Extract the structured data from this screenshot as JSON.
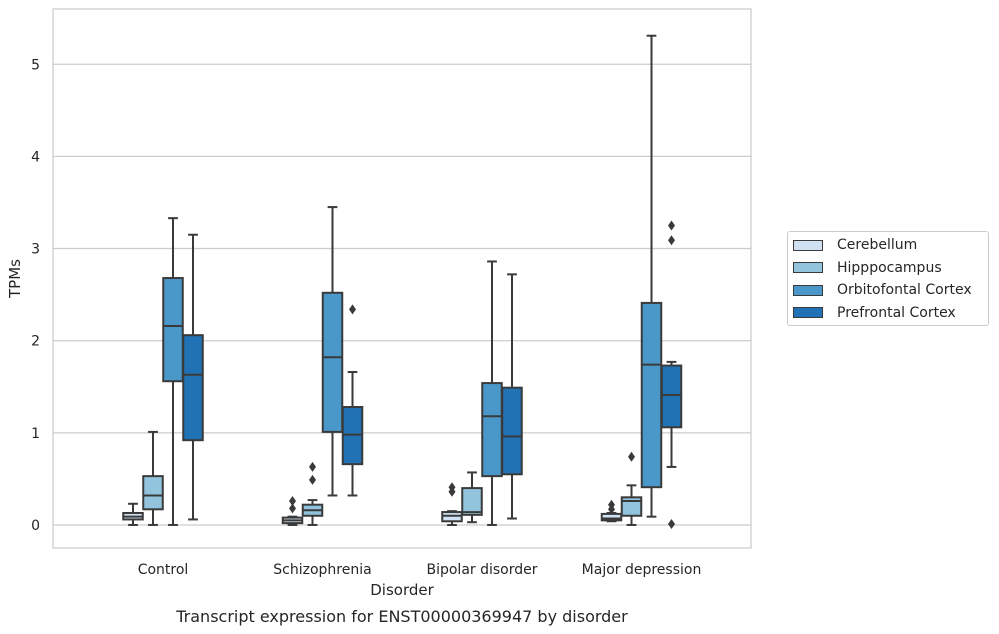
{
  "chart_data": {
    "type": "box",
    "title": "",
    "caption": "Transcript expression for ENST00000369947 by disorder",
    "xlabel": "Disorder",
    "ylabel": "TPMs",
    "ylim": [
      -0.25,
      5.6
    ],
    "yticks": [
      0,
      1,
      2,
      3,
      4,
      5
    ],
    "grid": true,
    "legend_position": "right",
    "categories": [
      "Control",
      "Schizophrenia",
      "Bipolar disorder",
      "Major depression"
    ],
    "series": [
      {
        "name": "Cerebellum",
        "color": "#cfe1f2",
        "boxes": [
          {
            "whisker_low": 0.0,
            "q1": 0.06,
            "median": 0.09,
            "q3": 0.13,
            "whisker_high": 0.23,
            "outliers": []
          },
          {
            "whisker_low": 0.0,
            "q1": 0.02,
            "median": 0.05,
            "q3": 0.08,
            "whisker_high": 0.09,
            "outliers": [
              0.18,
              0.26
            ]
          },
          {
            "whisker_low": 0.0,
            "q1": 0.04,
            "median": 0.1,
            "q3": 0.14,
            "whisker_high": 0.15,
            "outliers": [
              0.36,
              0.41
            ]
          },
          {
            "whisker_low": 0.04,
            "q1": 0.05,
            "median": 0.07,
            "q3": 0.12,
            "whisker_high": 0.13,
            "outliers": [
              0.17,
              0.22
            ]
          }
        ]
      },
      {
        "name": "Hipppocampus",
        "color": "#93c4de",
        "boxes": [
          {
            "whisker_low": 0.0,
            "q1": 0.17,
            "median": 0.32,
            "q3": 0.53,
            "whisker_high": 1.01,
            "outliers": []
          },
          {
            "whisker_low": 0.0,
            "q1": 0.1,
            "median": 0.16,
            "q3": 0.22,
            "whisker_high": 0.27,
            "outliers": [
              0.49,
              0.63
            ]
          },
          {
            "whisker_low": 0.03,
            "q1": 0.11,
            "median": 0.14,
            "q3": 0.4,
            "whisker_high": 0.57,
            "outliers": []
          },
          {
            "whisker_low": 0.0,
            "q1": 0.1,
            "median": 0.26,
            "q3": 0.3,
            "whisker_high": 0.43,
            "outliers": [
              0.74
            ]
          }
        ]
      },
      {
        "name": "Orbitofontal Cortex",
        "color": "#4a98c9",
        "boxes": [
          {
            "whisker_low": 0.0,
            "q1": 1.56,
            "median": 2.16,
            "q3": 2.68,
            "whisker_high": 3.33,
            "outliers": []
          },
          {
            "whisker_low": 0.32,
            "q1": 1.01,
            "median": 1.82,
            "q3": 2.52,
            "whisker_high": 3.45,
            "outliers": []
          },
          {
            "whisker_low": 0.0,
            "q1": 0.53,
            "median": 1.18,
            "q3": 1.54,
            "whisker_high": 2.86,
            "outliers": []
          },
          {
            "whisker_low": 0.09,
            "q1": 0.41,
            "median": 1.74,
            "q3": 2.41,
            "whisker_high": 5.31,
            "outliers": []
          }
        ]
      },
      {
        "name": "Prefrontal Cortex",
        "color": "#2171b5",
        "boxes": [
          {
            "whisker_low": 0.06,
            "q1": 0.92,
            "median": 1.63,
            "q3": 2.06,
            "whisker_high": 3.15,
            "outliers": []
          },
          {
            "whisker_low": 0.32,
            "q1": 0.66,
            "median": 0.98,
            "q3": 1.28,
            "whisker_high": 1.66,
            "outliers": [
              2.34
            ]
          },
          {
            "whisker_low": 0.07,
            "q1": 0.55,
            "median": 0.96,
            "q3": 1.49,
            "whisker_high": 2.72,
            "outliers": []
          },
          {
            "whisker_low": 0.63,
            "q1": 1.06,
            "median": 1.41,
            "q3": 1.73,
            "whisker_high": 1.77,
            "outliers": [
              0.01,
              3.09,
              3.25
            ]
          }
        ]
      }
    ]
  }
}
